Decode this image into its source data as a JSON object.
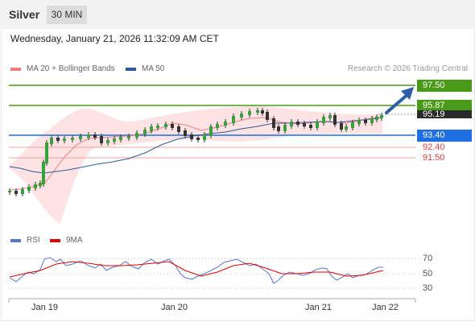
{
  "header": {
    "symbol": "Silver",
    "timeframe": "30 MIN"
  },
  "datetime": "Wednesday, January 21, 2026 11:32:09 AM CET",
  "legend": {
    "ma20": {
      "label": "MA 20 + Bollinger Bands",
      "color": "#f08080"
    },
    "ma50": {
      "label": "MA 50",
      "color": "#2e5a9a"
    },
    "rsi": {
      "label": "RSI",
      "color": "#5577cc"
    },
    "rsi_ma": {
      "label": "9MA",
      "color": "#e00000"
    }
  },
  "credit": "Research © 2026 Trading Central",
  "levels": {
    "r2": {
      "label": "97.50",
      "color": "#4a9a1a"
    },
    "r1": {
      "label": "95.87",
      "color": "#4a9a1a"
    },
    "last": {
      "label": "95.19",
      "color": "#2a2a2a"
    },
    "pivot": {
      "label": "93.40",
      "color": "#1f6fe0"
    },
    "s1": {
      "label": "92.40",
      "color": "#e04040"
    },
    "s2": {
      "label": "91.50",
      "color": "#e04040"
    }
  },
  "rsi_axis": [
    "70",
    "50",
    "30"
  ],
  "x_axis": [
    "Jan 19",
    "Jan 20",
    "Jan 21",
    "Jan 22"
  ],
  "icons": {
    "arrow": "trend-arrow-up-icon"
  }
}
